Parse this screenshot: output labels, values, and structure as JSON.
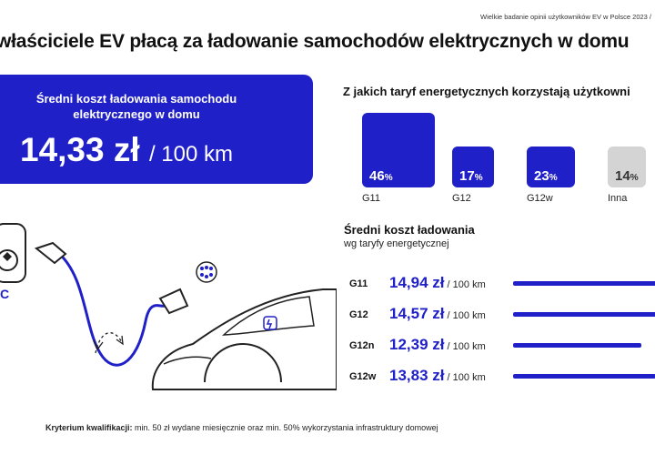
{
  "header": {
    "source_note": "Wielkie badanie opinii użytkowników EV w Polsce 2023  /",
    "headline": "właściciele EV płacą za ładowanie samochodów elektrycznych w domu"
  },
  "avg_cost": {
    "label": "Średni koszt ładowania samochodu elektrycznego w domu",
    "value": "14,33 zł",
    "unit": "/ 100 km"
  },
  "illustration": {
    "c_label": "C"
  },
  "colors": {
    "accent": "#2020c8",
    "other": "#d4d4d4"
  },
  "chart_data": [
    {
      "type": "bar",
      "title": "Z jakich taryf energetycznych korzystają użytkowni",
      "categories": [
        "G11",
        "G12",
        "G12w",
        "Inna"
      ],
      "values": [
        46,
        17,
        23,
        14
      ],
      "value_labels": [
        "46",
        "17",
        "23",
        "14"
      ],
      "value_suffix": "%",
      "ylim": [
        0,
        46
      ]
    },
    {
      "type": "bar",
      "orientation": "horizontal",
      "title": "Średni koszt ładowania",
      "subtitle": "wg taryfy energetycznej",
      "categories": [
        "G11",
        "G12",
        "G12n",
        "G12w"
      ],
      "values": [
        14.94,
        14.57,
        12.39,
        13.83
      ],
      "value_labels": [
        "14,94 zł",
        "14,57 zł",
        "12,39 zł",
        "13,83 zł"
      ],
      "unit_suffix": "/ 100 km"
    }
  ],
  "footer": {
    "label": "Kryterium kwalifikacji:",
    "text": " min. 50 zł wydane miesięcznie oraz min. 50% wykorzystania infrastruktury domowej"
  }
}
